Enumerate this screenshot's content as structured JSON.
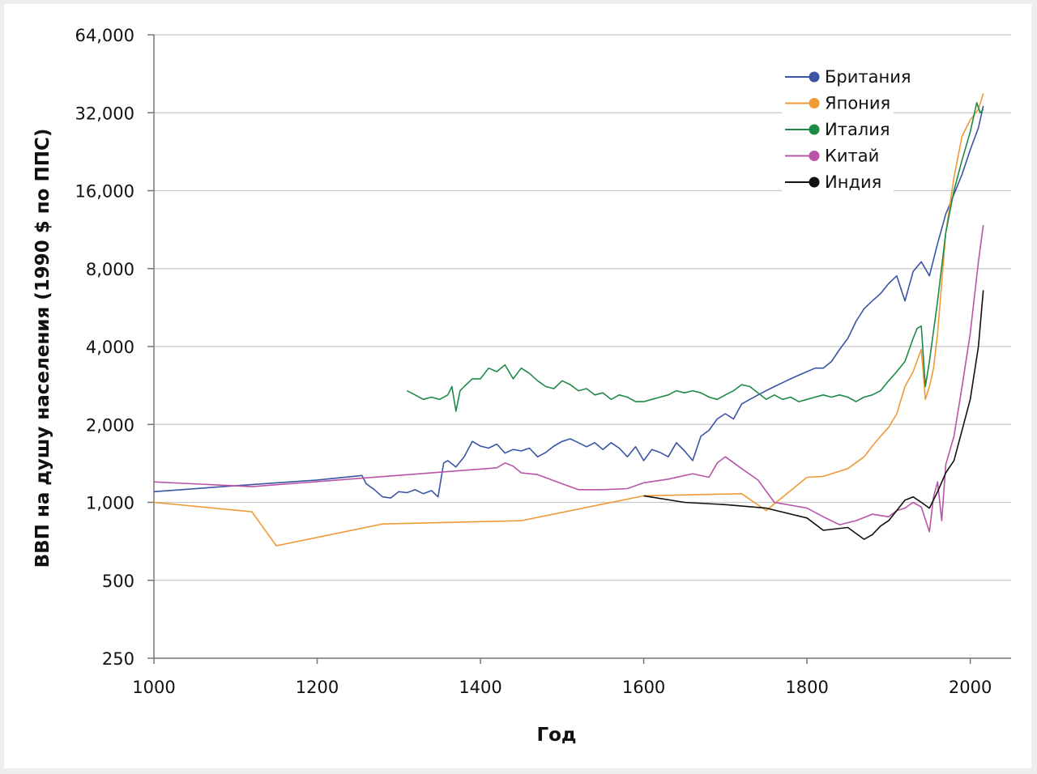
{
  "chart_data": {
    "type": "line",
    "xlabel": "Год",
    "ylabel": "ВВП на душу населения (1990 $ по ППС)",
    "xlim": [
      1000,
      2050
    ],
    "ylim": [
      250,
      64000
    ],
    "y_scale": "log2",
    "x_ticks": [
      "1000",
      "1200",
      "1400",
      "1600",
      "1800",
      "2000"
    ],
    "x_tick_values": [
      1000,
      1200,
      1400,
      1600,
      1800,
      2000
    ],
    "y_ticks": [
      "250",
      "500",
      "1,000",
      "2,000",
      "4,000",
      "8,000",
      "16,000",
      "32,000",
      "64,000"
    ],
    "y_tick_values": [
      250,
      500,
      1000,
      2000,
      4000,
      8000,
      16000,
      32000,
      64000
    ],
    "grid": "horizontal",
    "legend_position": "top-right",
    "series": [
      {
        "name": "Британия",
        "color": "#3b54a4",
        "x": [
          1000,
          1100,
          1200,
          1255,
          1260,
          1270,
          1280,
          1290,
          1300,
          1310,
          1320,
          1330,
          1340,
          1348,
          1355,
          1360,
          1370,
          1380,
          1390,
          1400,
          1410,
          1420,
          1430,
          1440,
          1450,
          1460,
          1470,
          1480,
          1490,
          1500,
          1510,
          1520,
          1530,
          1540,
          1550,
          1560,
          1570,
          1580,
          1590,
          1600,
          1610,
          1620,
          1630,
          1640,
          1650,
          1660,
          1670,
          1680,
          1690,
          1700,
          1710,
          1720,
          1730,
          1740,
          1750,
          1760,
          1770,
          1780,
          1790,
          1800,
          1810,
          1820,
          1830,
          1840,
          1850,
          1860,
          1870,
          1880,
          1890,
          1900,
          1910,
          1920,
          1930,
          1940,
          1950,
          1960,
          1970,
          1980,
          1990,
          2000,
          2010,
          2016
        ],
        "y": [
          1100,
          1160,
          1220,
          1270,
          1180,
          1120,
          1050,
          1040,
          1100,
          1090,
          1120,
          1080,
          1110,
          1050,
          1420,
          1450,
          1370,
          1500,
          1720,
          1650,
          1620,
          1680,
          1550,
          1600,
          1580,
          1620,
          1500,
          1560,
          1650,
          1720,
          1760,
          1700,
          1640,
          1700,
          1600,
          1700,
          1620,
          1500,
          1640,
          1450,
          1600,
          1560,
          1500,
          1700,
          1580,
          1450,
          1800,
          1900,
          2100,
          2200,
          2100,
          2400,
          2500,
          2600,
          2700,
          2800,
          2900,
          3000,
          3100,
          3200,
          3300,
          3300,
          3500,
          3900,
          4300,
          5000,
          5600,
          6000,
          6400,
          7000,
          7500,
          6000,
          7800,
          8500,
          7500,
          10000,
          13000,
          15500,
          18500,
          23000,
          28000,
          34000
        ]
      },
      {
        "name": "Япония",
        "color": "#ee9a36",
        "x": [
          1000,
          1120,
          1150,
          1280,
          1450,
          1600,
          1720,
          1750,
          1800,
          1820,
          1850,
          1870,
          1880,
          1890,
          1900,
          1910,
          1920,
          1930,
          1940,
          1945,
          1950,
          1955,
          1960,
          1970,
          1980,
          1990,
          2000,
          2010,
          2016
        ],
        "y": [
          1000,
          920,
          680,
          825,
          850,
          1060,
          1080,
          930,
          1250,
          1260,
          1350,
          1500,
          1650,
          1800,
          1950,
          2200,
          2800,
          3200,
          3900,
          2500,
          2800,
          3300,
          4500,
          11000,
          18000,
          26000,
          30000,
          33000,
          38000
        ]
      },
      {
        "name": "Италия",
        "color": "#1d8a48",
        "x": [
          1310,
          1320,
          1330,
          1340,
          1350,
          1360,
          1365,
          1370,
          1375,
          1380,
          1390,
          1400,
          1410,
          1420,
          1430,
          1440,
          1450,
          1460,
          1470,
          1480,
          1490,
          1500,
          1510,
          1520,
          1530,
          1540,
          1550,
          1560,
          1570,
          1580,
          1590,
          1600,
          1610,
          1620,
          1630,
          1640,
          1650,
          1660,
          1670,
          1680,
          1690,
          1700,
          1710,
          1720,
          1730,
          1740,
          1750,
          1760,
          1770,
          1780,
          1790,
          1800,
          1810,
          1820,
          1830,
          1840,
          1850,
          1860,
          1870,
          1880,
          1890,
          1900,
          1910,
          1920,
          1930,
          1935,
          1940,
          1945,
          1950,
          1960,
          1970,
          1980,
          1990,
          2000,
          2008,
          2012,
          2016
        ],
        "y": [
          2700,
          2600,
          2500,
          2550,
          2500,
          2600,
          2800,
          2250,
          2700,
          2800,
          3000,
          3000,
          3300,
          3200,
          3400,
          3000,
          3300,
          3150,
          2950,
          2800,
          2750,
          2950,
          2850,
          2700,
          2750,
          2600,
          2650,
          2500,
          2600,
          2550,
          2450,
          2450,
          2500,
          2550,
          2600,
          2700,
          2650,
          2700,
          2650,
          2550,
          2500,
          2600,
          2700,
          2850,
          2800,
          2650,
          2500,
          2600,
          2500,
          2550,
          2450,
          2500,
          2550,
          2600,
          2550,
          2600,
          2550,
          2450,
          2550,
          2600,
          2700,
          2950,
          3200,
          3500,
          4300,
          4700,
          4800,
          2800,
          3500,
          6000,
          11000,
          16000,
          21000,
          27000,
          35000,
          32000,
          33000
        ]
      },
      {
        "name": "Китай",
        "color": "#b955a6",
        "x": [
          1000,
          1120,
          1420,
          1430,
          1440,
          1450,
          1470,
          1500,
          1520,
          1550,
          1580,
          1600,
          1630,
          1660,
          1680,
          1690,
          1700,
          1720,
          1740,
          1760,
          1800,
          1820,
          1840,
          1860,
          1880,
          1900,
          1910,
          1920,
          1930,
          1940,
          1950,
          1955,
          1960,
          1965,
          1970,
          1980,
          1990,
          2000,
          2010,
          2016
        ],
        "y": [
          1200,
          1150,
          1360,
          1420,
          1380,
          1300,
          1280,
          1180,
          1120,
          1120,
          1130,
          1190,
          1230,
          1290,
          1250,
          1420,
          1500,
          1350,
          1220,
          1000,
          950,
          880,
          820,
          850,
          900,
          880,
          930,
          950,
          1000,
          960,
          770,
          1050,
          1200,
          850,
          1400,
          1800,
          2800,
          4500,
          8500,
          11800
        ]
      },
      {
        "name": "Индия",
        "color": "#111111",
        "x": [
          1600,
          1650,
          1700,
          1750,
          1800,
          1820,
          1850,
          1870,
          1880,
          1890,
          1900,
          1910,
          1920,
          1930,
          1940,
          1950,
          1960,
          1970,
          1980,
          1990,
          2000,
          2010,
          2016
        ],
        "y": [
          1060,
          1000,
          980,
          950,
          870,
          780,
          800,
          720,
          750,
          810,
          850,
          930,
          1020,
          1050,
          1000,
          950,
          1100,
          1300,
          1450,
          1900,
          2500,
          4000,
          6600
        ]
      }
    ]
  }
}
